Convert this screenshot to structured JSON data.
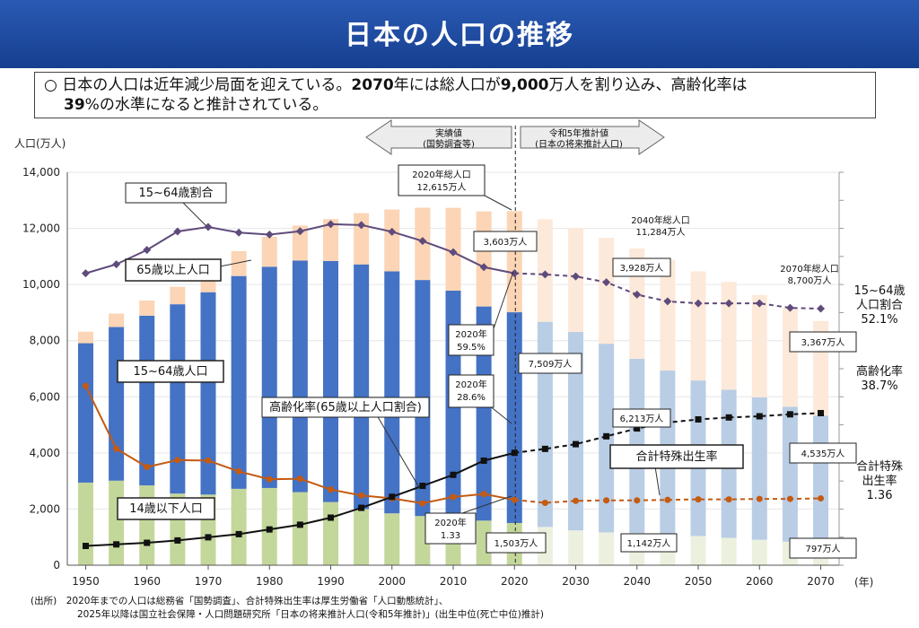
{
  "header": {
    "title": "日本の人口の推移"
  },
  "summary": {
    "bullet": "○",
    "line1_a": "日本の人口は近年減少局面を迎えている。",
    "line1_b": "2070",
    "line1_c": "年には総人口が",
    "line1_d": "9,000",
    "line1_e": "万人を割り込み、高齢化率は",
    "line2_a": "39",
    "line2_b": "%の水準になると推計されている。"
  },
  "periods": {
    "actual": [
      "実績値",
      "(国勢調査等)"
    ],
    "projected": [
      "令和5年推計値",
      "(日本の将来推計人口)"
    ]
  },
  "chart_data": {
    "type": "bar",
    "ylabel": "人口(万人)",
    "xlabel": "(年)",
    "ylim": [
      0,
      14000
    ],
    "yticks": [
      "0",
      "2,000",
      "4,000",
      "6,000",
      "8,000",
      "10,000",
      "12,000",
      "14,000"
    ],
    "x": [
      1950,
      1955,
      1960,
      1965,
      1970,
      1975,
      1980,
      1985,
      1990,
      1995,
      2000,
      2005,
      2010,
      2015,
      2020,
      2025,
      2030,
      2035,
      2040,
      2045,
      2050,
      2055,
      2060,
      2065,
      2070
    ],
    "xticks": [
      "1950",
      "1960",
      "1970",
      "1980",
      "1990",
      "2000",
      "2010",
      "2020",
      "2030",
      "2040",
      "2050",
      "2060",
      "2070"
    ],
    "projection_start_year": 2020,
    "series": [
      {
        "name": "14歳以下人口",
        "values": [
          2943,
          3012,
          2843,
          2553,
          2515,
          2722,
          2751,
          2603,
          2249,
          2001,
          1847,
          1752,
          1680,
          1589,
          1503,
          1363,
          1240,
          1169,
          1142,
          1103,
          1041,
          974,
          905,
          839,
          797
        ],
        "color_actual": "#c4d79b",
        "color_projected": "#ebf1de"
      },
      {
        "name": "15~64歳人口",
        "values": [
          4966,
          5473,
          6047,
          6744,
          7212,
          7581,
          7883,
          8251,
          8590,
          8716,
          8622,
          8409,
          8103,
          7629,
          7509,
          7310,
          7076,
          6722,
          6213,
          5832,
          5540,
          5275,
          5078,
          4809,
          4535
        ],
        "color_actual": "#4472c4",
        "color_projected": "#b9cde5"
      },
      {
        "name": "65歳以上人口",
        "values": [
          411,
          479,
          540,
          624,
          739,
          887,
          1065,
          1247,
          1493,
          1826,
          2204,
          2576,
          2948,
          3387,
          3603,
          3653,
          3696,
          3773,
          3928,
          3945,
          3888,
          3844,
          3644,
          3525,
          3367
        ],
        "color_actual": "#fbd5b5",
        "color_projected": "#fde9d9"
      },
      {
        "name": "15~64歳割合",
        "axis_values": [
          10400,
          10720,
          11230,
          11890,
          12050,
          11850,
          11780,
          11900,
          12150,
          12120,
          11880,
          11550,
          11150,
          10620,
          10400,
          10360,
          10290,
          10080,
          9640,
          9400,
          9330,
          9330,
          9330,
          9170,
          9140
        ],
        "color": "#5f4b7b"
      },
      {
        "name": "高齢化率(65歳以上人口割合)",
        "values": [
          4.9,
          5.3,
          5.7,
          6.3,
          7.1,
          7.9,
          9.1,
          10.3,
          12.1,
          14.6,
          17.4,
          20.2,
          23.0,
          26.6,
          28.6,
          29.6,
          30.8,
          32.8,
          34.8,
          36.3,
          37.1,
          37.6,
          37.9,
          38.4,
          38.7
        ],
        "color": "#111111"
      },
      {
        "name": "合計特殊出生率",
        "values": [
          3.65,
          2.37,
          2.0,
          2.14,
          2.13,
          1.91,
          1.75,
          1.76,
          1.54,
          1.42,
          1.36,
          1.26,
          1.39,
          1.45,
          1.33,
          1.27,
          1.31,
          1.32,
          1.32,
          1.33,
          1.34,
          1.34,
          1.35,
          1.35,
          1.36
        ],
        "color": "#c55a11"
      }
    ]
  },
  "callouts": {
    "ratio_title": "15~64歳割合",
    "age65_title": "65歳以上人口",
    "age1564_title": "15~64歳人口",
    "age14_title": "14歳以下人口",
    "aging_title": "高齢化率(65歳以上人口割合)",
    "tfr_title": "合計特殊出生率",
    "total2020": [
      "2020年総人口",
      "12,615万人"
    ],
    "total2040": [
      "2040年総人口",
      "11,284万人"
    ],
    "total2070": [
      "2070年総人口",
      "8,700万人"
    ],
    "v2020_65": "3,603万人",
    "v2020_1564": "7,509万人",
    "v2020_14": "1,503万人",
    "v2020_ratio": [
      "2020年",
      "59.5%"
    ],
    "v2020_aging": [
      "2020年",
      "28.6%"
    ],
    "v2020_tfr": [
      "2020年",
      "1.33"
    ],
    "v2040_65": "3,928万人",
    "v2040_1564": "6,213万人",
    "v2040_14": "1,142万人",
    "v2070_65": "3,367万人",
    "v2070_1564": "4,535万人",
    "v2070_14": "797万人",
    "end_ratio": [
      "15~64歳",
      "人口割合",
      "52.1%"
    ],
    "end_aging": [
      "高齢化率",
      "38.7%"
    ],
    "end_tfr": [
      "合計特殊",
      "出生率",
      "1.36"
    ]
  },
  "footnote": {
    "label": "(出所)",
    "line1": "2020年までの人口は総務省「国勢調査」、合計特殊出生率は厚生労働省「人口動態統計」、",
    "line2": "2025年以降は国立社会保障・人口問題研究所「日本の将来推計人口(令和5年推計)」(出生中位(死亡中位)推計)"
  }
}
